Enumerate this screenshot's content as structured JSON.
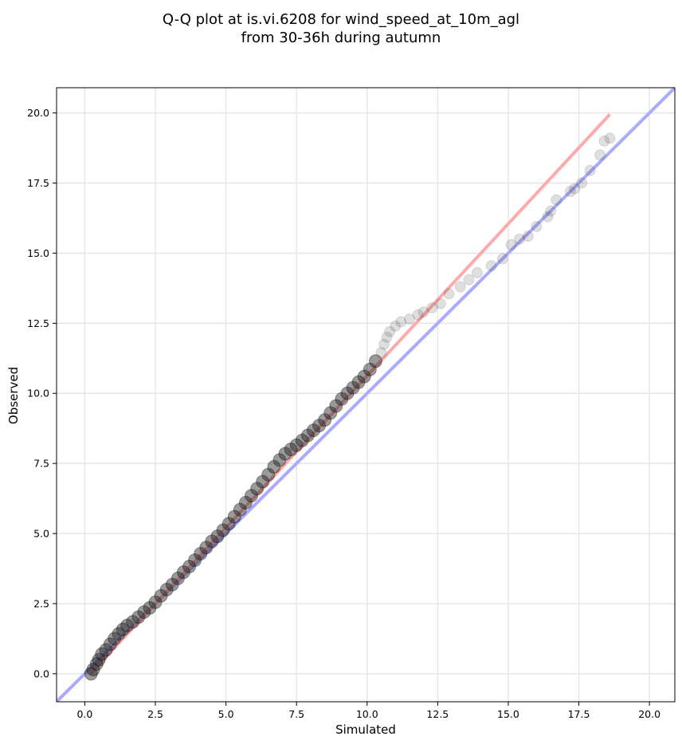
{
  "chart_data": {
    "type": "scatter",
    "title_line1": "Q-Q plot at is.vi.6208 for wind_speed_at_10m_agl",
    "title_line2": "from 30-36h during autumn",
    "xlabel": "Simulated",
    "ylabel": "Observed",
    "xlim": [
      -1.0,
      20.9
    ],
    "ylim": [
      -1.0,
      20.9
    ],
    "grid": true,
    "xticks": [
      0.0,
      2.5,
      5.0,
      7.5,
      10.0,
      12.5,
      15.0,
      17.5,
      20.0
    ],
    "yticks": [
      0.0,
      2.5,
      5.0,
      7.5,
      10.0,
      12.5,
      15.0,
      17.5,
      20.0
    ],
    "xtick_labels": [
      "0.0",
      "2.5",
      "5.0",
      "7.5",
      "10.0",
      "12.5",
      "15.0",
      "17.5",
      "20.0"
    ],
    "ytick_labels": [
      "0.0",
      "2.5",
      "5.0",
      "7.5",
      "10.0",
      "12.5",
      "15.0",
      "17.5",
      "20.0"
    ],
    "reference_lines": [
      {
        "color": "#aaaaff",
        "points": [
          [
            -1.0,
            -1.0
          ],
          [
            20.9,
            20.9
          ]
        ]
      },
      {
        "color": "#ffaaaa",
        "points": [
          [
            0.2,
            0.0
          ],
          [
            18.6,
            19.95
          ]
        ]
      }
    ],
    "points": [
      [
        0.22,
        0.0
      ],
      [
        0.3,
        0.15
      ],
      [
        0.42,
        0.35
      ],
      [
        0.5,
        0.5
      ],
      [
        0.6,
        0.7
      ],
      [
        0.75,
        0.85
      ],
      [
        0.9,
        1.05
      ],
      [
        1.05,
        1.25
      ],
      [
        1.2,
        1.42
      ],
      [
        1.35,
        1.58
      ],
      [
        1.5,
        1.72
      ],
      [
        1.7,
        1.85
      ],
      [
        1.9,
        2.02
      ],
      [
        2.1,
        2.2
      ],
      [
        2.3,
        2.35
      ],
      [
        2.5,
        2.55
      ],
      [
        2.7,
        2.78
      ],
      [
        2.9,
        3.0
      ],
      [
        3.1,
        3.18
      ],
      [
        3.3,
        3.4
      ],
      [
        3.5,
        3.62
      ],
      [
        3.7,
        3.82
      ],
      [
        3.9,
        4.05
      ],
      [
        4.1,
        4.28
      ],
      [
        4.3,
        4.5
      ],
      [
        4.5,
        4.72
      ],
      [
        4.7,
        4.9
      ],
      [
        4.9,
        5.12
      ],
      [
        5.1,
        5.35
      ],
      [
        5.3,
        5.6
      ],
      [
        5.5,
        5.85
      ],
      [
        5.7,
        6.1
      ],
      [
        5.9,
        6.35
      ],
      [
        6.1,
        6.6
      ],
      [
        6.3,
        6.85
      ],
      [
        6.5,
        7.1
      ],
      [
        6.7,
        7.38
      ],
      [
        6.9,
        7.62
      ],
      [
        7.1,
        7.85
      ],
      [
        7.3,
        8.0
      ],
      [
        7.5,
        8.15
      ],
      [
        7.7,
        8.32
      ],
      [
        7.9,
        8.5
      ],
      [
        8.1,
        8.68
      ],
      [
        8.3,
        8.85
      ],
      [
        8.5,
        9.05
      ],
      [
        8.7,
        9.3
      ],
      [
        8.9,
        9.55
      ],
      [
        9.1,
        9.8
      ],
      [
        9.3,
        10.0
      ],
      [
        9.5,
        10.2
      ],
      [
        9.7,
        10.4
      ],
      [
        9.9,
        10.6
      ],
      [
        10.1,
        10.85
      ],
      [
        10.3,
        11.15
      ],
      [
        10.5,
        11.45
      ],
      [
        10.6,
        11.75
      ],
      [
        10.7,
        12.0
      ],
      [
        10.8,
        12.2
      ],
      [
        11.0,
        12.4
      ],
      [
        11.2,
        12.55
      ],
      [
        11.5,
        12.65
      ],
      [
        11.8,
        12.8
      ],
      [
        12.0,
        12.9
      ],
      [
        12.3,
        13.05
      ],
      [
        12.6,
        13.2
      ],
      [
        12.9,
        13.55
      ],
      [
        13.3,
        13.8
      ],
      [
        13.6,
        14.05
      ],
      [
        13.9,
        14.3
      ],
      [
        14.4,
        14.55
      ],
      [
        14.8,
        14.8
      ],
      [
        15.1,
        15.3
      ],
      [
        15.4,
        15.5
      ],
      [
        15.7,
        15.6
      ],
      [
        16.0,
        15.95
      ],
      [
        16.4,
        16.3
      ],
      [
        16.5,
        16.5
      ],
      [
        16.7,
        16.9
      ],
      [
        17.2,
        17.2
      ],
      [
        17.35,
        17.3
      ],
      [
        17.6,
        17.5
      ],
      [
        17.9,
        17.95
      ],
      [
        18.25,
        18.5
      ],
      [
        18.4,
        19.0
      ],
      [
        18.6,
        19.1
      ]
    ]
  }
}
